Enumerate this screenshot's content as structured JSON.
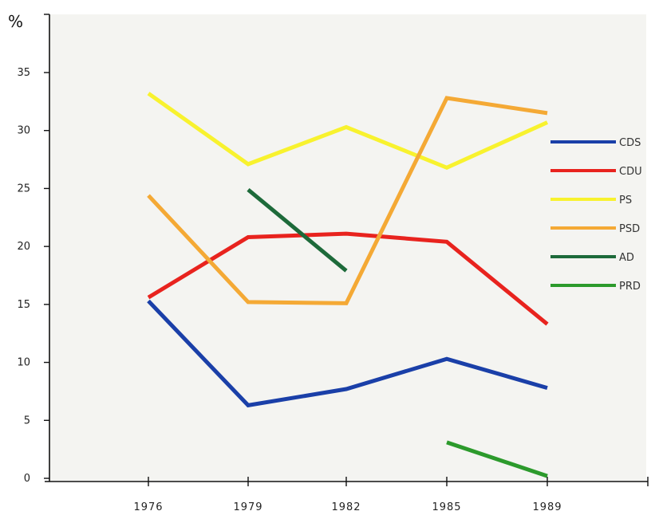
{
  "chart_data": {
    "type": "line",
    "y_unit_label": "%",
    "categories": [
      "1976",
      "1979",
      "1982",
      "1985",
      "1989"
    ],
    "ylim": [
      0,
      35
    ],
    "yticks": [
      "0",
      "5",
      "10",
      "15",
      "20",
      "25",
      "30",
      "35"
    ],
    "grid": false,
    "legend_position": "right",
    "series": [
      {
        "name": "CDS",
        "color": "#1a3fa8",
        "values": [
          15.3,
          6.3,
          7.7,
          10.3,
          7.8
        ]
      },
      {
        "name": "CDU",
        "color": "#e8231e",
        "values": [
          15.6,
          20.8,
          21.1,
          20.4,
          13.3
        ]
      },
      {
        "name": "PS",
        "color": "#f8f22e",
        "values": [
          33.2,
          27.1,
          30.3,
          26.8,
          30.7
        ]
      },
      {
        "name": "PSD",
        "color": "#f4a935",
        "values": [
          24.4,
          15.2,
          15.1,
          32.8,
          31.5
        ]
      },
      {
        "name": "AD",
        "color": "#1d6a3a",
        "values": [
          null,
          24.9,
          17.9,
          null,
          null
        ]
      },
      {
        "name": "PRD",
        "color": "#2c9a2c",
        "values": [
          null,
          null,
          null,
          3.1,
          0.2
        ]
      }
    ]
  }
}
